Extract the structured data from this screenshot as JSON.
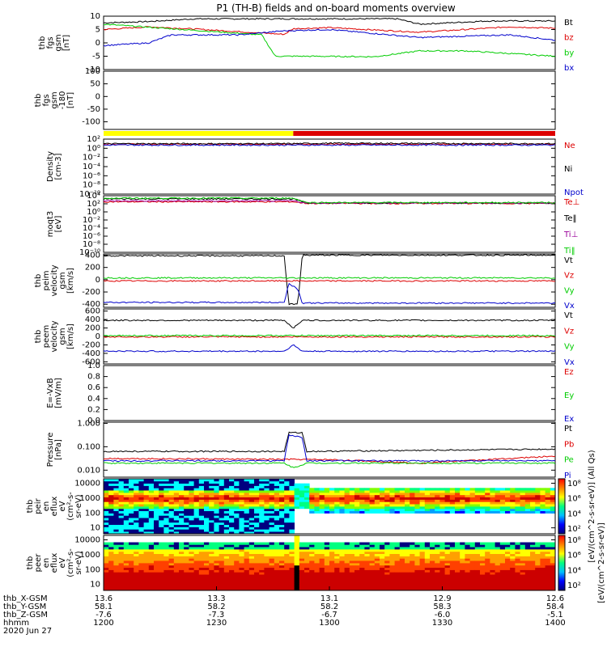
{
  "title": "P1 (TH-B) fields and on-board moments overview",
  "colors": {
    "black": "#000000",
    "red": "#dd0000",
    "green": "#00cc00",
    "blue": "#0000cc",
    "purple": "#990099",
    "yellow": "#ffff00"
  },
  "chart_data": [
    {
      "type": "line",
      "id": "fgs",
      "ylabel": [
        "thb",
        "fgs",
        "gsm",
        "[nT]"
      ],
      "ylim": [
        -10,
        10
      ],
      "yticks": [
        "10",
        "5",
        "0",
        "-5",
        "-10"
      ],
      "ytick_values": [
        10,
        5,
        0,
        -5,
        -10
      ],
      "series": [
        {
          "name": "Bt",
          "color": "black",
          "points": [
            [
              0,
              7.5
            ],
            [
              0.1,
              8
            ],
            [
              0.2,
              9
            ],
            [
              0.5,
              9
            ],
            [
              0.65,
              9
            ],
            [
              0.7,
              7
            ],
            [
              0.85,
              8.2
            ],
            [
              1,
              8.2
            ]
          ]
        },
        {
          "name": "bz",
          "color": "red",
          "points": [
            [
              0,
              5
            ],
            [
              0.1,
              6
            ],
            [
              0.2,
              5.2
            ],
            [
              0.4,
              3.2
            ],
            [
              0.42,
              5.3
            ],
            [
              0.5,
              5.7
            ],
            [
              0.7,
              4
            ],
            [
              0.9,
              6
            ],
            [
              1,
              5.5
            ]
          ]
        },
        {
          "name": "by",
          "color": "green",
          "points": [
            [
              0,
              7
            ],
            [
              0.35,
              3
            ],
            [
              0.38,
              -5
            ],
            [
              0.45,
              -5
            ],
            [
              0.6,
              -5.2
            ],
            [
              0.7,
              -3
            ],
            [
              0.8,
              -3
            ],
            [
              0.9,
              -4
            ],
            [
              1,
              -5
            ]
          ]
        },
        {
          "name": "bx",
          "color": "blue",
          "points": [
            [
              0,
              -1
            ],
            [
              0.1,
              0
            ],
            [
              0.15,
              3
            ],
            [
              0.3,
              3
            ],
            [
              0.4,
              4.5
            ],
            [
              0.5,
              5
            ],
            [
              0.7,
              2
            ],
            [
              0.9,
              3
            ],
            [
              1,
              1
            ]
          ]
        }
      ]
    },
    {
      "type": "line",
      "id": "fgs-dsl",
      "ylabel": [
        "thb",
        "fgs",
        "gsm",
        "-180",
        "[nT]"
      ],
      "ylim": [
        -130,
        100
      ],
      "yticks": [
        "100",
        "50",
        "0",
        "-50",
        "-100"
      ],
      "ytick_values": [
        100,
        50,
        0,
        -50,
        -100
      ],
      "series": []
    },
    {
      "type": "line",
      "id": "density",
      "ylabel": [
        "Density",
        "[cm-3]"
      ],
      "ylim": [
        -10,
        2
      ],
      "yscale": "log",
      "yticks": [
        "10²",
        "10⁰",
        "10⁻²",
        "10⁻⁴",
        "10⁻⁶",
        "10⁻⁸",
        "10⁻¹⁰"
      ],
      "ytick_values": [
        2,
        0,
        -2,
        -4,
        -6,
        -8,
        -10
      ],
      "series": [
        {
          "name": "Ne",
          "color": "red",
          "points": [
            [
              0,
              0.9
            ],
            [
              1,
              0.9
            ]
          ]
        },
        {
          "name": "Ni",
          "color": "black",
          "points": [
            [
              0,
              1
            ],
            [
              0.4,
              1
            ],
            [
              0.5,
              1.1
            ],
            [
              1,
              1
            ]
          ]
        },
        {
          "name": "Npot",
          "color": "blue",
          "points": [
            [
              0,
              0.7
            ],
            [
              1,
              0.7
            ]
          ]
        }
      ]
    },
    {
      "type": "line",
      "id": "moments",
      "ylabel": [
        "moqt3",
        "[eV]"
      ],
      "ylim": [
        -10,
        4
      ],
      "yscale": "log",
      "yticks": [
        "10⁴",
        "10²",
        "10⁰",
        "10⁻²",
        "10⁻⁴",
        "10⁻⁶",
        "10⁻⁸",
        "10⁻¹⁰"
      ],
      "ytick_values": [
        4,
        2,
        0,
        -2,
        -4,
        -6,
        -8,
        -10
      ],
      "series": [
        {
          "name": "Te⊥",
          "color": "red",
          "points": [
            [
              0,
              2.5
            ],
            [
              0.42,
              2.5
            ],
            [
              0.45,
              2.1
            ],
            [
              1,
              2.1
            ]
          ]
        },
        {
          "name": "Te‖",
          "color": "black",
          "points": [
            [
              0,
              3.2
            ],
            [
              0.42,
              3.2
            ],
            [
              0.45,
              2.2
            ],
            [
              1,
              2.2
            ]
          ]
        },
        {
          "name": "Ti⊥",
          "color": "purple",
          "points": [
            [
              0,
              2.7
            ],
            [
              0.42,
              2.7
            ],
            [
              0.45,
              2.2
            ],
            [
              1,
              2.2
            ]
          ]
        },
        {
          "name": "Ti‖",
          "color": "green",
          "points": [
            [
              0,
              3.4
            ],
            [
              0.42,
              3.4
            ],
            [
              0.45,
              2.3
            ],
            [
              1,
              2.3
            ]
          ]
        }
      ]
    },
    {
      "type": "line",
      "id": "peim",
      "ylabel": [
        "thb",
        "peim",
        "velocity",
        "gsm",
        "[km/s]"
      ],
      "ylim": [
        -450,
        420
      ],
      "yticks": [
        "400",
        "200",
        "0",
        "-200",
        "-400"
      ],
      "ytick_values": [
        400,
        200,
        0,
        -200,
        -400
      ],
      "series": [
        {
          "name": "Vt",
          "color": "black",
          "points": [
            [
              0,
              390
            ],
            [
              0.4,
              390
            ],
            [
              0.41,
              -400
            ],
            [
              0.43,
              -400
            ],
            [
              0.44,
              400
            ],
            [
              1,
              400
            ]
          ]
        },
        {
          "name": "Vz",
          "color": "red",
          "points": [
            [
              0,
              -20
            ],
            [
              1,
              -20
            ]
          ]
        },
        {
          "name": "Vy",
          "color": "green",
          "points": [
            [
              0,
              30
            ],
            [
              1,
              30
            ]
          ]
        },
        {
          "name": "Vx",
          "color": "blue",
          "points": [
            [
              0,
              -370
            ],
            [
              0.4,
              -370
            ],
            [
              0.41,
              -60
            ],
            [
              0.43,
              -150
            ],
            [
              0.44,
              -380
            ],
            [
              1,
              -380
            ]
          ]
        }
      ]
    },
    {
      "type": "line",
      "id": "peem",
      "ylabel": [
        "thb",
        "peem",
        "velocity",
        "gsm",
        "[km/s]"
      ],
      "ylim": [
        -650,
        650
      ],
      "yticks": [
        "600",
        "400",
        "200",
        "0",
        "-200",
        "-400",
        "-600"
      ],
      "ytick_values": [
        600,
        400,
        200,
        0,
        -200,
        -400,
        -600
      ],
      "series": [
        {
          "name": "Vt",
          "color": "black",
          "points": [
            [
              0,
              380
            ],
            [
              0.4,
              380
            ],
            [
              0.42,
              200
            ],
            [
              0.44,
              380
            ],
            [
              1,
              380
            ]
          ]
        },
        {
          "name": "Vz",
          "color": "red",
          "points": [
            [
              0,
              -10
            ],
            [
              1,
              -10
            ]
          ]
        },
        {
          "name": "Vy",
          "color": "green",
          "points": [
            [
              0,
              20
            ],
            [
              1,
              20
            ]
          ]
        },
        {
          "name": "Vx",
          "color": "blue",
          "points": [
            [
              0,
              -350
            ],
            [
              0.4,
              -350
            ],
            [
              0.42,
              -200
            ],
            [
              0.44,
              -350
            ],
            [
              1,
              -350
            ]
          ]
        }
      ]
    },
    {
      "type": "line",
      "id": "efield",
      "ylabel": [
        "E=-VxB",
        "[mV/m]"
      ],
      "ylim": [
        0,
        1
      ],
      "yticks": [
        "1.0",
        "0.8",
        "0.6",
        "0.4",
        "0.2",
        "0.0"
      ],
      "ytick_values": [
        1,
        0.8,
        0.6,
        0.4,
        0.2,
        0
      ],
      "series": [
        {
          "name": "Ez",
          "color": "red",
          "points": []
        },
        {
          "name": "Ey",
          "color": "green",
          "points": []
        },
        {
          "name": "Ex",
          "color": "blue",
          "points": []
        }
      ]
    },
    {
      "type": "line",
      "id": "pressure",
      "ylabel": [
        "Pressure",
        "[nPa]"
      ],
      "ylim": [
        -2.3,
        0.05
      ],
      "yscale": "log",
      "yticks": [
        "1.000",
        "0.100",
        "0.010"
      ],
      "ytick_values": [
        0,
        -1,
        -2
      ],
      "series": [
        {
          "name": "Pt",
          "color": "black",
          "points": [
            [
              0,
              -1.2
            ],
            [
              0.4,
              -1.2
            ],
            [
              0.41,
              -0.4
            ],
            [
              0.44,
              -0.4
            ],
            [
              0.45,
              -1.2
            ],
            [
              1,
              -1.1
            ]
          ]
        },
        {
          "name": "Pb",
          "color": "red",
          "points": [
            [
              0,
              -1.5
            ],
            [
              0.5,
              -1.55
            ],
            [
              0.7,
              -1.7
            ],
            [
              1,
              -1.4
            ]
          ]
        },
        {
          "name": "Pe",
          "color": "green",
          "points": [
            [
              0,
              -1.7
            ],
            [
              0.4,
              -1.7
            ],
            [
              0.42,
              -1.9
            ],
            [
              0.45,
              -1.7
            ],
            [
              1,
              -1.7
            ]
          ]
        },
        {
          "name": "Pi",
          "color": "blue",
          "points": [
            [
              0,
              -1.6
            ],
            [
              0.4,
              -1.6
            ],
            [
              0.41,
              -0.5
            ],
            [
              0.44,
              -0.6
            ],
            [
              0.45,
              -1.6
            ],
            [
              1,
              -1.6
            ]
          ]
        }
      ]
    },
    {
      "type": "heatmap",
      "id": "peir",
      "ylabel": [
        "thb",
        "peir",
        "en",
        "eflux",
        "eV",
        "(cm²-s-",
        "sr-eV)"
      ],
      "yscale": "log",
      "yticks": [
        "10000",
        "1000",
        "100",
        "10"
      ],
      "ytick_values": [
        4,
        3,
        2,
        1
      ]
    },
    {
      "type": "heatmap",
      "id": "peer",
      "ylabel": [
        "thb",
        "peer",
        "en",
        "eflux",
        "eV",
        "(cm²-s-",
        "sr-eV)"
      ],
      "yscale": "log",
      "yticks": [
        "10000",
        "1000",
        "100",
        "10"
      ],
      "ytick_values": [
        4,
        3,
        2,
        1
      ]
    }
  ],
  "colorbar": {
    "label_top": "[eV/(cm^2-s-sr-eV)] (All Qs)",
    "label_bottom": "[eV/(cm^2-s-sr-eV)]",
    "ticks_top": [
      "10⁸",
      "10⁶",
      "10⁴",
      "10²"
    ],
    "ticks_bottom": [
      "10⁸",
      "10⁶",
      "10⁴",
      "10²"
    ]
  },
  "xaxis": {
    "row_labels": [
      "thb_X-GSM",
      "thb_Y-GSM",
      "thb_Z-GSM",
      "hhmm",
      "2020 Jun 27"
    ],
    "ticks": [
      {
        "x": "13.6",
        "y": "58.1",
        "z": "-7.6",
        "t": "1200"
      },
      {
        "x": "13.3",
        "y": "58.2",
        "z": "-7.3",
        "t": "1230"
      },
      {
        "x": "13.1",
        "y": "58.2",
        "z": "-6.7",
        "t": "1300"
      },
      {
        "x": "12.9",
        "y": "58.3",
        "z": "-6.0",
        "t": "1330"
      },
      {
        "x": "12.6",
        "y": "58.4",
        "z": "-5.1",
        "t": "1400"
      }
    ]
  },
  "mode_bar": {
    "segments": [
      {
        "color": "yellow",
        "from": 0,
        "to": 0.42
      },
      {
        "color": "red",
        "from": 0.42,
        "to": 1
      }
    ]
  }
}
